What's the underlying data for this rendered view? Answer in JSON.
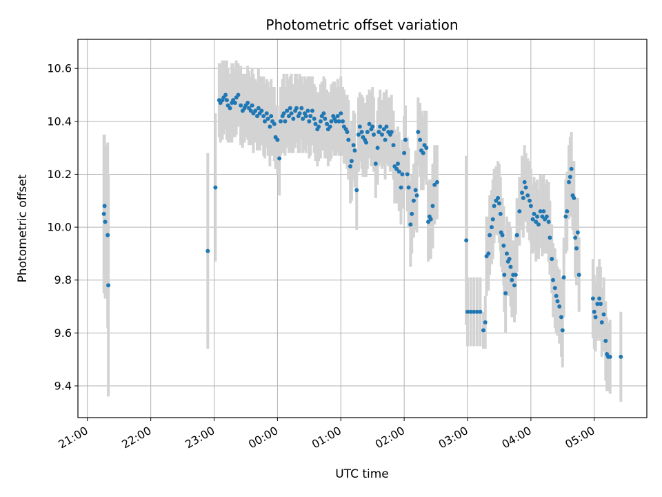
{
  "chart_data": {
    "type": "scatter",
    "title": "Photometric offset variation",
    "xlabel": "UTC time",
    "ylabel": "Photometric offset",
    "x_unit": "hours",
    "x_tick_values": [
      21,
      22,
      23,
      24,
      25,
      26,
      27,
      28,
      29
    ],
    "x_tick_labels": [
      "21:00",
      "22:00",
      "23:00",
      "00:00",
      "01:00",
      "02:00",
      "03:00",
      "04:00",
      "05:00"
    ],
    "y_ticks": [
      9.4,
      9.6,
      9.8,
      10.0,
      10.2,
      10.4,
      10.6
    ],
    "y_tick_labels": [
      "9.4",
      "9.6",
      "9.8",
      "10.0",
      "10.2",
      "10.4",
      "10.6"
    ],
    "xlim": [
      20.85,
      29.83
    ],
    "ylim": [
      9.28,
      10.71
    ],
    "grid": true,
    "marker_color": "#1f77b4",
    "errorbar_color": "#d3d3d3",
    "points": [
      [
        21.26,
        10.05,
        0.3
      ],
      [
        21.27,
        10.08,
        0.27
      ],
      [
        21.28,
        10.02,
        0.29
      ],
      [
        21.32,
        9.97,
        0.35
      ],
      [
        21.33,
        9.78,
        0.42
      ],
      [
        22.9,
        9.91,
        0.37
      ],
      [
        23.02,
        10.15,
        0.28
      ],
      [
        23.08,
        10.48,
        0.14
      ],
      [
        23.1,
        10.47,
        0.15
      ],
      [
        23.13,
        10.48,
        0.15
      ],
      [
        23.15,
        10.49,
        0.14
      ],
      [
        23.18,
        10.5,
        0.13
      ],
      [
        23.2,
        10.48,
        0.15
      ],
      [
        23.22,
        10.46,
        0.14
      ],
      [
        23.25,
        10.45,
        0.13
      ],
      [
        23.28,
        10.47,
        0.15
      ],
      [
        23.3,
        10.48,
        0.14
      ],
      [
        23.33,
        10.47,
        0.13
      ],
      [
        23.35,
        10.49,
        0.14
      ],
      [
        23.38,
        10.5,
        0.12
      ],
      [
        23.42,
        10.46,
        0.15
      ],
      [
        23.45,
        10.44,
        0.14
      ],
      [
        23.48,
        10.45,
        0.13
      ],
      [
        23.5,
        10.46,
        0.12
      ],
      [
        23.53,
        10.47,
        0.14
      ],
      [
        23.55,
        10.45,
        0.14
      ],
      [
        23.58,
        10.44,
        0.13
      ],
      [
        23.6,
        10.46,
        0.14
      ],
      [
        23.62,
        10.43,
        0.15
      ],
      [
        23.65,
        10.44,
        0.12
      ],
      [
        23.68,
        10.42,
        0.13
      ],
      [
        23.7,
        10.45,
        0.15
      ],
      [
        23.72,
        10.43,
        0.14
      ],
      [
        23.75,
        10.44,
        0.13
      ],
      [
        23.78,
        10.42,
        0.15
      ],
      [
        23.8,
        10.4,
        0.14
      ],
      [
        23.83,
        10.43,
        0.13
      ],
      [
        23.85,
        10.41,
        0.14
      ],
      [
        23.88,
        10.38,
        0.15
      ],
      [
        23.9,
        10.42,
        0.14
      ],
      [
        23.92,
        10.4,
        0.13
      ],
      [
        23.95,
        10.39,
        0.14
      ],
      [
        23.97,
        10.34,
        0.12
      ],
      [
        24.0,
        10.33,
        0.13
      ],
      [
        24.03,
        10.26,
        0.14
      ],
      [
        24.05,
        10.4,
        0.13
      ],
      [
        24.08,
        10.42,
        0.14
      ],
      [
        24.1,
        10.43,
        0.15
      ],
      [
        24.12,
        10.4,
        0.13
      ],
      [
        24.15,
        10.44,
        0.14
      ],
      [
        24.18,
        10.42,
        0.14
      ],
      [
        24.2,
        10.45,
        0.12
      ],
      [
        24.22,
        10.43,
        0.15
      ],
      [
        24.25,
        10.41,
        0.13
      ],
      [
        24.28,
        10.44,
        0.14
      ],
      [
        24.3,
        10.45,
        0.13
      ],
      [
        24.33,
        10.42,
        0.14
      ],
      [
        24.35,
        10.43,
        0.15
      ],
      [
        24.38,
        10.45,
        0.12
      ],
      [
        24.4,
        10.41,
        0.13
      ],
      [
        24.43,
        10.43,
        0.14
      ],
      [
        24.45,
        10.42,
        0.14
      ],
      [
        24.48,
        10.44,
        0.13
      ],
      [
        24.5,
        10.4,
        0.14
      ],
      [
        24.52,
        10.42,
        0.15
      ],
      [
        24.55,
        10.44,
        0.13
      ],
      [
        24.58,
        10.41,
        0.13
      ],
      [
        24.6,
        10.39,
        0.14
      ],
      [
        24.63,
        10.37,
        0.14
      ],
      [
        24.65,
        10.38,
        0.13
      ],
      [
        24.68,
        10.4,
        0.14
      ],
      [
        24.7,
        10.42,
        0.13
      ],
      [
        24.73,
        10.43,
        0.14
      ],
      [
        24.75,
        10.41,
        0.15
      ],
      [
        24.78,
        10.39,
        0.13
      ],
      [
        24.8,
        10.37,
        0.14
      ],
      [
        24.83,
        10.38,
        0.13
      ],
      [
        24.85,
        10.4,
        0.14
      ],
      [
        24.88,
        10.42,
        0.13
      ],
      [
        24.9,
        10.41,
        0.14
      ],
      [
        24.92,
        10.4,
        0.13
      ],
      [
        24.95,
        10.42,
        0.14
      ],
      [
        24.97,
        10.4,
        0.13
      ],
      [
        25.0,
        10.43,
        0.14
      ],
      [
        25.03,
        10.4,
        0.13
      ],
      [
        25.05,
        10.38,
        0.14
      ],
      [
        25.08,
        10.37,
        0.13
      ],
      [
        25.1,
        10.36,
        0.14
      ],
      [
        25.12,
        10.33,
        0.15
      ],
      [
        25.15,
        10.23,
        0.14
      ],
      [
        25.17,
        10.25,
        0.15
      ],
      [
        25.2,
        10.31,
        0.13
      ],
      [
        25.22,
        10.29,
        0.14
      ],
      [
        25.25,
        10.14,
        0.15
      ],
      [
        25.28,
        10.35,
        0.14
      ],
      [
        25.3,
        10.38,
        0.13
      ],
      [
        25.33,
        10.36,
        0.14
      ],
      [
        25.35,
        10.34,
        0.15
      ],
      [
        25.38,
        10.33,
        0.14
      ],
      [
        25.4,
        10.32,
        0.13
      ],
      [
        25.42,
        10.36,
        0.14
      ],
      [
        25.45,
        10.39,
        0.13
      ],
      [
        25.48,
        10.37,
        0.14
      ],
      [
        25.5,
        10.38,
        0.15
      ],
      [
        25.52,
        10.35,
        0.14
      ],
      [
        25.55,
        10.24,
        0.13
      ],
      [
        25.58,
        10.3,
        0.14
      ],
      [
        25.6,
        10.36,
        0.13
      ],
      [
        25.62,
        10.38,
        0.14
      ],
      [
        25.65,
        10.35,
        0.13
      ],
      [
        25.68,
        10.37,
        0.14
      ],
      [
        25.7,
        10.33,
        0.15
      ],
      [
        25.72,
        10.38,
        0.14
      ],
      [
        25.75,
        10.36,
        0.13
      ],
      [
        25.78,
        10.35,
        0.14
      ],
      [
        25.8,
        10.36,
        0.14
      ],
      [
        25.83,
        10.31,
        0.13
      ],
      [
        25.85,
        10.23,
        0.14
      ],
      [
        25.88,
        10.22,
        0.13
      ],
      [
        25.9,
        10.24,
        0.14
      ],
      [
        25.92,
        10.21,
        0.15
      ],
      [
        25.95,
        10.15,
        0.14
      ],
      [
        25.97,
        10.2,
        0.13
      ],
      [
        26.0,
        10.28,
        0.14
      ],
      [
        26.02,
        10.33,
        0.13
      ],
      [
        26.05,
        10.2,
        0.14
      ],
      [
        26.07,
        10.15,
        0.15
      ],
      [
        26.1,
        10.01,
        0.16
      ],
      [
        26.12,
        10.05,
        0.15
      ],
      [
        26.15,
        10.1,
        0.14
      ],
      [
        26.18,
        10.14,
        0.15
      ],
      [
        26.2,
        10.12,
        0.14
      ],
      [
        26.22,
        10.36,
        0.13
      ],
      [
        26.25,
        10.33,
        0.14
      ],
      [
        26.27,
        10.29,
        0.15
      ],
      [
        26.3,
        10.28,
        0.14
      ],
      [
        26.32,
        10.31,
        0.13
      ],
      [
        26.35,
        10.3,
        0.14
      ],
      [
        26.38,
        10.02,
        0.15
      ],
      [
        26.4,
        10.04,
        0.14
      ],
      [
        26.42,
        10.03,
        0.15
      ],
      [
        26.45,
        10.08,
        0.16
      ],
      [
        26.48,
        10.16,
        0.15
      ],
      [
        26.52,
        10.17,
        0.14
      ],
      [
        26.98,
        9.95,
        0.32
      ],
      [
        27.0,
        9.68,
        0.13
      ],
      [
        27.05,
        9.68,
        0.13
      ],
      [
        27.1,
        9.68,
        0.13
      ],
      [
        27.15,
        9.68,
        0.13
      ],
      [
        27.2,
        9.68,
        0.13
      ],
      [
        27.25,
        9.61,
        0.07
      ],
      [
        27.28,
        9.64,
        0.1
      ],
      [
        27.3,
        9.89,
        0.15
      ],
      [
        27.33,
        9.9,
        0.14
      ],
      [
        27.35,
        9.97,
        0.15
      ],
      [
        27.38,
        10.0,
        0.14
      ],
      [
        27.4,
        10.03,
        0.15
      ],
      [
        27.42,
        10.08,
        0.14
      ],
      [
        27.45,
        10.1,
        0.13
      ],
      [
        27.48,
        10.11,
        0.14
      ],
      [
        27.5,
        10.09,
        0.15
      ],
      [
        27.52,
        10.05,
        0.14
      ],
      [
        27.53,
        9.98,
        0.13
      ],
      [
        27.55,
        9.97,
        0.14
      ],
      [
        27.57,
        9.93,
        0.15
      ],
      [
        27.58,
        9.82,
        0.14
      ],
      [
        27.6,
        9.75,
        0.15
      ],
      [
        27.62,
        9.9,
        0.14
      ],
      [
        27.64,
        9.87,
        0.13
      ],
      [
        27.66,
        9.88,
        0.14
      ],
      [
        27.68,
        9.85,
        0.15
      ],
      [
        27.7,
        9.8,
        0.14
      ],
      [
        27.72,
        9.82,
        0.13
      ],
      [
        27.74,
        9.78,
        0.14
      ],
      [
        27.76,
        9.82,
        0.15
      ],
      [
        27.78,
        9.97,
        0.14
      ],
      [
        27.82,
        10.06,
        0.13
      ],
      [
        27.86,
        10.13,
        0.14
      ],
      [
        27.88,
        10.11,
        0.15
      ],
      [
        27.9,
        10.17,
        0.14
      ],
      [
        27.92,
        10.15,
        0.13
      ],
      [
        27.95,
        10.12,
        0.14
      ],
      [
        27.98,
        10.1,
        0.15
      ],
      [
        28.0,
        10.08,
        0.14
      ],
      [
        28.03,
        10.03,
        0.13
      ],
      [
        28.05,
        10.05,
        0.14
      ],
      [
        28.08,
        10.02,
        0.15
      ],
      [
        28.1,
        10.04,
        0.14
      ],
      [
        28.12,
        10.01,
        0.13
      ],
      [
        28.15,
        10.06,
        0.14
      ],
      [
        28.18,
        10.04,
        0.15
      ],
      [
        28.2,
        10.06,
        0.14
      ],
      [
        28.22,
        10.03,
        0.13
      ],
      [
        28.25,
        10.04,
        0.14
      ],
      [
        28.28,
        10.02,
        0.15
      ],
      [
        28.3,
        9.96,
        0.14
      ],
      [
        28.33,
        9.88,
        0.13
      ],
      [
        28.35,
        9.8,
        0.14
      ],
      [
        28.38,
        9.77,
        0.15
      ],
      [
        28.4,
        9.74,
        0.14
      ],
      [
        28.42,
        9.72,
        0.13
      ],
      [
        28.45,
        9.7,
        0.14
      ],
      [
        28.48,
        9.66,
        0.15
      ],
      [
        28.5,
        9.61,
        0.14
      ],
      [
        28.52,
        9.81,
        0.15
      ],
      [
        28.55,
        10.04,
        0.14
      ],
      [
        28.57,
        10.06,
        0.15
      ],
      [
        28.6,
        10.17,
        0.14
      ],
      [
        28.62,
        10.19,
        0.15
      ],
      [
        28.64,
        10.22,
        0.14
      ],
      [
        28.66,
        10.12,
        0.13
      ],
      [
        28.68,
        10.11,
        0.14
      ],
      [
        28.7,
        9.96,
        0.15
      ],
      [
        28.72,
        9.92,
        0.14
      ],
      [
        28.74,
        9.98,
        0.13
      ],
      [
        28.76,
        9.82,
        0.14
      ],
      [
        28.98,
        9.73,
        0.15
      ],
      [
        29.0,
        9.68,
        0.14
      ],
      [
        29.02,
        9.66,
        0.13
      ],
      [
        29.05,
        9.71,
        0.14
      ],
      [
        29.08,
        9.73,
        0.15
      ],
      [
        29.1,
        9.71,
        0.14
      ],
      [
        29.12,
        9.64,
        0.13
      ],
      [
        29.15,
        9.67,
        0.14
      ],
      [
        29.18,
        9.57,
        0.15
      ],
      [
        29.2,
        9.52,
        0.14
      ],
      [
        29.22,
        9.51,
        0.13
      ],
      [
        29.25,
        9.51,
        0.14
      ],
      [
        29.42,
        9.51,
        0.17
      ]
    ]
  }
}
